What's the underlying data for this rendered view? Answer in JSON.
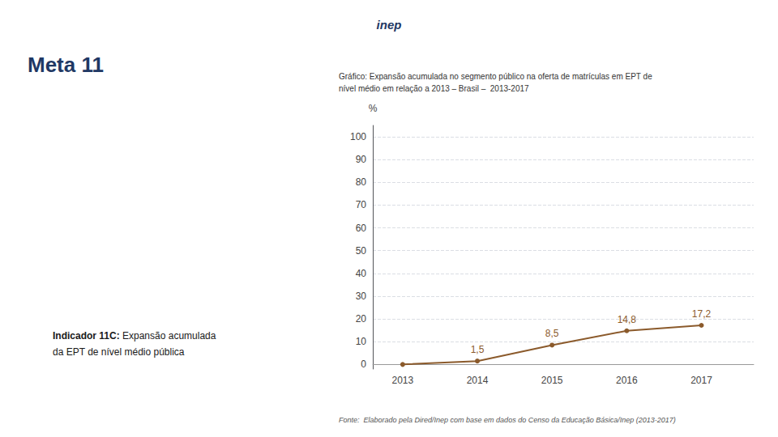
{
  "chart_data": {
    "type": "line",
    "title": "Gráfico: Expansão acumulada no segmento público na oferta de matrículas em EPT de\nnível médio em relação a 2013 – Brasil –  2013-2017",
    "annotations": [
      "inep",
      "Meta 11",
      "Indicador 11C: Expansão acumulada\nda EPT de nível médio pública",
      "Fonte:  Elaborado pela Dired/Inep com base em dados do Censo da Educação Básica/Inep (2013-2017)"
    ],
    "y_label": "%",
    "x": [
      2013,
      2014,
      2015,
      2016,
      2017
    ],
    "values": [
      0.0,
      1.5,
      8.5,
      14.8,
      17.2
    ],
    "value_labels": [
      null,
      "1,5",
      "8,5",
      "14,8",
      "17,2"
    ],
    "data_labels": true,
    "color": "#8B5A2B",
    "marker": "circle",
    "xlim": [
      2012.6,
      2017.7
    ],
    "xticks": [
      2013,
      2014,
      2015,
      2016,
      2017
    ],
    "ylim": [
      -2,
      105
    ],
    "yticks": [
      0,
      10,
      20,
      30,
      40,
      50,
      60,
      70,
      80,
      90,
      100
    ],
    "grid": true
  }
}
